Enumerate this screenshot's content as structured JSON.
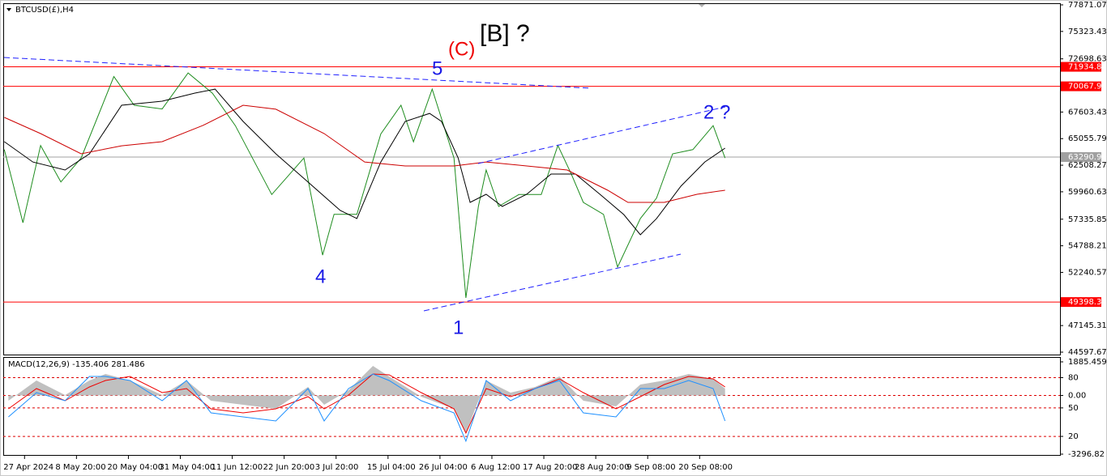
{
  "chart_data": [
    {
      "type": "line",
      "title": "BTCUSD(£),H4",
      "xlim": [
        -0.41,
        19.94
      ],
      "xticks": [
        {
          "value": 0,
          "label": "27 Apr 2024"
        },
        {
          "value": 1,
          "label": "8 May 20:00"
        },
        {
          "value": 2,
          "label": "20 May 04:00"
        },
        {
          "value": 3,
          "label": "31 May 04:00"
        },
        {
          "value": 4,
          "label": "11 Jun 12:00"
        },
        {
          "value": 5,
          "label": "22 Jun 20:00"
        },
        {
          "value": 6,
          "label": "3 Jul 20:00"
        },
        {
          "value": 7,
          "label": "15 Jul 04:00"
        },
        {
          "value": 8,
          "label": "26 Jul 04:00"
        },
        {
          "value": 9,
          "label": "6 Aug 12:00"
        },
        {
          "value": 10,
          "label": "17 Aug 20:00"
        },
        {
          "value": 11,
          "label": "28 Aug 20:00"
        },
        {
          "value": 12,
          "label": "9 Sep 08:00"
        },
        {
          "value": 13,
          "label": "20 Sep 08:00"
        }
      ],
      "ylim": [
        44365,
        78026
      ],
      "yticks": [
        77871.07,
        75323.43,
        72698.63,
        67603.43,
        65055.79,
        62508.27,
        59960.63,
        57335.85,
        54788.21,
        52240.57,
        47145.31,
        44597.67
      ],
      "levels": [
        71934.81,
        70067.98,
        49398.38
      ],
      "levels_color": "#ff0000",
      "current": {
        "value": 63290.9,
        "label": "63290.90"
      },
      "current_color": "#a0a0a0",
      "annotations": [
        "[B] ?",
        "(C)",
        "5",
        "4",
        "1",
        "2 ?"
      ],
      "series": [
        {
          "color": "#1e8c1e",
          "x": [
            -0.39,
            -0.03,
            0.31,
            0.7,
            1.09,
            1.72,
            2.11,
            2.65,
            3.15,
            3.62,
            4.06,
            4.76,
            5.38,
            5.74,
            5.96,
            6.4,
            6.86,
            7.25,
            7.49,
            7.85,
            8.27,
            8.5,
            8.74,
            8.89,
            9.13,
            9.52,
            9.95,
            10.27,
            10.53,
            10.76,
            11.15,
            11.42,
            11.86,
            12.17,
            12.48,
            12.87,
            13.26,
            13.49
          ],
          "values": [
            64000,
            57000,
            64400,
            60900,
            63200,
            71000,
            68250,
            67900,
            71350,
            69400,
            66300,
            59700,
            63200,
            53900,
            57800,
            57800,
            65500,
            68250,
            64750,
            69800,
            63200,
            49800,
            58560,
            62050,
            58560,
            59700,
            59700,
            64400,
            61650,
            58950,
            57800,
            52750,
            57400,
            59350,
            63600,
            64000,
            66300,
            63200
          ]
        },
        {
          "color": "#000000",
          "x": [
            -0.39,
            0.16,
            0.78,
            1.25,
            1.87,
            2.65,
            3.28,
            3.67,
            4.21,
            4.84,
            5.46,
            6.08,
            6.4,
            6.86,
            7.33,
            7.8,
            8.03,
            8.35,
            8.58,
            8.89,
            9.2,
            9.67,
            10.14,
            10.61,
            11.08,
            11.54,
            11.86,
            12.17,
            12.64,
            13.1,
            13.49
          ],
          "values": [
            64760,
            62820,
            62050,
            63600,
            68250,
            68640,
            69420,
            69800,
            66700,
            63600,
            60890,
            58170,
            57400,
            62820,
            66700,
            67470,
            66700,
            63210,
            58950,
            59720,
            58560,
            59720,
            61660,
            61660,
            59720,
            57780,
            55840,
            57390,
            60500,
            62820,
            64140
          ]
        },
        {
          "color": "#cc0000",
          "x": [
            -0.39,
            0.31,
            1.09,
            1.87,
            2.65,
            3.43,
            4.21,
            4.84,
            5.77,
            6.55,
            7.33,
            8.27,
            8.89,
            9.67,
            10.45,
            11.23,
            11.62,
            12.32,
            12.95,
            13.49
          ],
          "values": [
            67090,
            65540,
            63600,
            64370,
            64760,
            66310,
            68250,
            67870,
            65540,
            62820,
            62440,
            62440,
            62820,
            62440,
            62050,
            60110,
            58950,
            58950,
            59720,
            60110
          ]
        }
      ]
    },
    {
      "type": "line",
      "title": "MACD(12,26,9) -135.406 281.486",
      "xlim": [
        -0.41,
        19.94
      ],
      "ylim": [
        -3296.82,
        1885.459
      ],
      "yticks": [
        1885.459,
        {
          "value": 1000,
          "label": "80"
        },
        {
          "value": 0,
          "label": "0.00"
        },
        {
          "value": -700,
          "label": "50"
        },
        {
          "value": -2300,
          "label": "20"
        },
        -3296.82
      ],
      "level_color": "#dd0000",
      "x": [
        -0.31,
        0.23,
        0.78,
        1.25,
        1.56,
        2.03,
        2.65,
        3.12,
        3.59,
        4.21,
        4.84,
        5.46,
        5.77,
        6.24,
        6.71,
        7.02,
        7.64,
        8.27,
        8.5,
        8.89,
        9.36,
        9.83,
        10.3,
        10.76,
        11.39,
        11.86,
        12.32,
        12.79,
        13.26,
        13.49
      ],
      "series": [
        {
          "color": "#c0c0c0",
          "style": "area",
          "values": [
            -297,
            840,
            21,
            840,
            1203,
            840,
            21,
            840,
            -297,
            -524,
            -752,
            476,
            -524,
            294,
            1658,
            1067,
            -70,
            -752,
            -2115,
            840,
            158,
            476,
            1067,
            -297,
            -615,
            612,
            840,
            1203,
            931,
            385
          ]
        },
        {
          "color": "#ee0000",
          "values": [
            -752,
            385,
            -297,
            476,
            840,
            1067,
            158,
            385,
            -752,
            -979,
            -752,
            -70,
            -752,
            21,
            1203,
            1158,
            158,
            -752,
            -2115,
            385,
            -70,
            385,
            931,
            158,
            -752,
            -70,
            612,
            1067,
            931,
            476
          ]
        },
        {
          "color": "#1e90ff",
          "values": [
            -1206,
            158,
            -297,
            1067,
            1067,
            840,
            -297,
            840,
            -979,
            -1206,
            -1434,
            385,
            -1434,
            385,
            1203,
            840,
            -297,
            -979,
            -2570,
            840,
            -297,
            385,
            840,
            -979,
            -1206,
            385,
            385,
            840,
            385,
            -1434
          ]
        }
      ]
    }
  ]
}
